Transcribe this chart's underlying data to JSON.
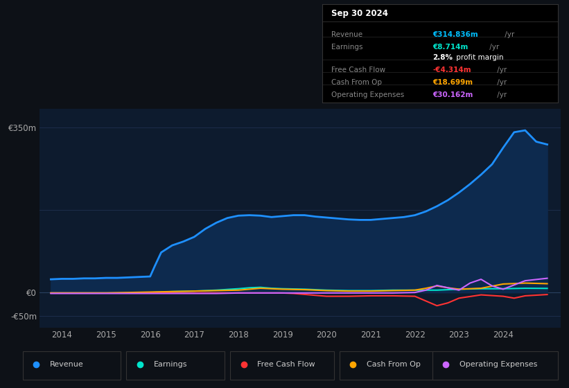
{
  "background_color": "#0d1117",
  "plot_bg_color": "#0d1b2e",
  "grid_color": "#1e3050",
  "title_box": {
    "date": "Sep 30 2024",
    "rows": [
      {
        "label": "Revenue",
        "value": "€314.836m",
        "suffix": " /yr",
        "value_color": "#00bfff"
      },
      {
        "label": "Earnings",
        "value": "€8.714m",
        "suffix": " /yr",
        "value_color": "#00e5cc"
      },
      {
        "label": "",
        "value": "2.8%",
        "suffix": " profit margin",
        "value_color": "#ffffff"
      },
      {
        "label": "Free Cash Flow",
        "value": "-€4.314m",
        "suffix": " /yr",
        "value_color": "#ff3333"
      },
      {
        "label": "Cash From Op",
        "value": "€18.699m",
        "suffix": " /yr",
        "value_color": "#ffa500"
      },
      {
        "label": "Operating Expenses",
        "value": "€30.162m",
        "suffix": " /yr",
        "value_color": "#cc66ff"
      }
    ],
    "bg": "#000000",
    "border": "#333333",
    "text_color": "#888888",
    "bold_color": "#ffffff"
  },
  "yticks": [
    350,
    0,
    -50
  ],
  "ylabels": [
    "€350m",
    "€0",
    "-€50m"
  ],
  "ylim": [
    -75,
    390
  ],
  "xlim": [
    2013.5,
    2025.3
  ],
  "xticks": [
    2014,
    2015,
    2016,
    2017,
    2018,
    2019,
    2020,
    2021,
    2022,
    2023,
    2024
  ],
  "series": {
    "Revenue": {
      "color": "#1e90ff",
      "fill_color": "#0d2a4e",
      "lw": 2.0,
      "x": [
        2013.75,
        2014.0,
        2014.25,
        2014.5,
        2014.75,
        2015.0,
        2015.25,
        2015.5,
        2015.75,
        2016.0,
        2016.1,
        2016.25,
        2016.5,
        2016.75,
        2017.0,
        2017.25,
        2017.5,
        2017.75,
        2018.0,
        2018.25,
        2018.5,
        2018.75,
        2019.0,
        2019.25,
        2019.5,
        2019.75,
        2020.0,
        2020.25,
        2020.5,
        2020.75,
        2021.0,
        2021.25,
        2021.5,
        2021.75,
        2022.0,
        2022.25,
        2022.5,
        2022.75,
        2023.0,
        2023.25,
        2023.5,
        2023.75,
        2024.0,
        2024.25,
        2024.5,
        2024.75,
        2025.0
      ],
      "y": [
        28,
        29,
        29,
        30,
        30,
        31,
        31,
        32,
        33,
        34,
        55,
        85,
        100,
        108,
        118,
        135,
        148,
        158,
        163,
        164,
        163,
        160,
        162,
        164,
        164,
        161,
        159,
        157,
        155,
        154,
        154,
        156,
        158,
        160,
        164,
        172,
        183,
        196,
        212,
        230,
        250,
        272,
        307,
        340,
        344,
        320,
        314
      ]
    },
    "Earnings": {
      "color": "#00e5cc",
      "lw": 1.5,
      "x": [
        2013.75,
        2014.0,
        2014.5,
        2015.0,
        2015.5,
        2016.0,
        2016.5,
        2017.0,
        2017.5,
        2018.0,
        2018.25,
        2018.5,
        2018.75,
        2019.0,
        2019.5,
        2020.0,
        2020.5,
        2021.0,
        2021.5,
        2022.0,
        2022.5,
        2023.0,
        2023.5,
        2024.0,
        2024.5,
        2025.0
      ],
      "y": [
        -1,
        -1,
        -1,
        -1,
        -1,
        0,
        2,
        3,
        5,
        8,
        10,
        11,
        9,
        8,
        7,
        5,
        4,
        4,
        5,
        5,
        5,
        7,
        8,
        8,
        9,
        8.7
      ]
    },
    "Free Cash Flow": {
      "color": "#ff3333",
      "lw": 1.5,
      "x": [
        2013.75,
        2014.0,
        2014.5,
        2015.0,
        2015.5,
        2016.0,
        2016.5,
        2017.0,
        2017.5,
        2018.0,
        2018.5,
        2019.0,
        2019.25,
        2019.5,
        2019.75,
        2020.0,
        2020.5,
        2021.0,
        2021.5,
        2022.0,
        2022.25,
        2022.5,
        2022.75,
        2023.0,
        2023.5,
        2024.0,
        2024.25,
        2024.5,
        2025.0
      ],
      "y": [
        -1,
        -1,
        -1,
        -1,
        -1,
        -1,
        -1,
        -1,
        -1,
        -1,
        -1,
        -1,
        -2,
        -4,
        -6,
        -8,
        -8,
        -7,
        -7,
        -8,
        -18,
        -28,
        -22,
        -12,
        -5,
        -8,
        -12,
        -7,
        -4.3
      ]
    },
    "Cash From Op": {
      "color": "#ffa500",
      "lw": 1.5,
      "x": [
        2013.75,
        2014.0,
        2014.5,
        2015.0,
        2015.5,
        2016.0,
        2016.5,
        2017.0,
        2017.5,
        2018.0,
        2018.25,
        2018.5,
        2018.75,
        2019.0,
        2019.5,
        2020.0,
        2020.5,
        2021.0,
        2021.5,
        2022.0,
        2022.25,
        2022.5,
        2022.75,
        2023.0,
        2023.5,
        2024.0,
        2024.5,
        2025.0
      ],
      "y": [
        -1,
        -1,
        -1,
        -1,
        0,
        1,
        2,
        3,
        4,
        5,
        7,
        9,
        8,
        7,
        6,
        4,
        3,
        3,
        4,
        5,
        9,
        14,
        10,
        7,
        9,
        18,
        20,
        18.7
      ]
    },
    "Operating Expenses": {
      "color": "#cc66ff",
      "lw": 1.5,
      "x": [
        2013.75,
        2014.0,
        2014.5,
        2015.0,
        2015.5,
        2016.0,
        2016.5,
        2017.0,
        2017.5,
        2018.0,
        2018.5,
        2019.0,
        2019.5,
        2020.0,
        2020.5,
        2021.0,
        2021.5,
        2022.0,
        2022.25,
        2022.5,
        2022.75,
        2023.0,
        2023.25,
        2023.5,
        2023.75,
        2024.0,
        2024.5,
        2025.0
      ],
      "y": [
        -2,
        -2,
        -2,
        -2,
        -2,
        -2,
        -2,
        -2,
        -2,
        -1,
        -1,
        -1,
        -1,
        -1,
        -1,
        -1,
        -1,
        0,
        5,
        15,
        10,
        5,
        20,
        28,
        14,
        7,
        25,
        30.2
      ]
    }
  },
  "legend": [
    {
      "label": "Revenue",
      "color": "#1e90ff"
    },
    {
      "label": "Earnings",
      "color": "#00e5cc"
    },
    {
      "label": "Free Cash Flow",
      "color": "#ff3333"
    },
    {
      "label": "Cash From Op",
      "color": "#ffa500"
    },
    {
      "label": "Operating Expenses",
      "color": "#cc66ff"
    }
  ]
}
